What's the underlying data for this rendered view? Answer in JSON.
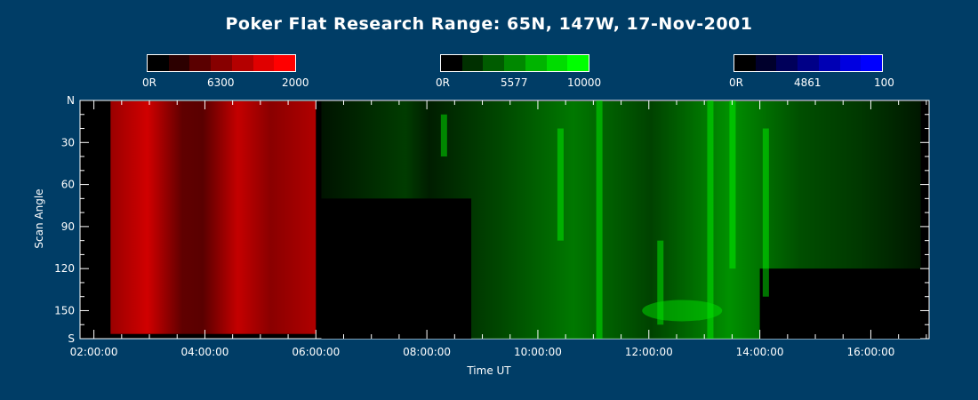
{
  "chart_data": {
    "type": "heatmap",
    "title": "Poker Flat Research Range: 65N, 147W, 17-Nov-2001",
    "xlabel": "Time UT",
    "ylabel": "Scan Angle",
    "x_ticks": [
      "02:00:00",
      "04:00:00",
      "06:00:00",
      "08:00:00",
      "10:00:00",
      "12:00:00",
      "14:00:00",
      "16:00:00"
    ],
    "x_tick_hours": [
      2,
      4,
      6,
      8,
      10,
      12,
      14,
      16
    ],
    "xlim_hours": [
      1.75,
      17.05
    ],
    "y_ticks": [
      "N",
      "30",
      "60",
      "90",
      "120",
      "150",
      "S"
    ],
    "y_tick_values": [
      0,
      30,
      60,
      90,
      120,
      150,
      170
    ],
    "ylim": [
      0,
      170
    ],
    "colorbars": [
      {
        "name": "6300",
        "min_label": "0R",
        "max_label": "2000",
        "colors": [
          "#000000",
          "#2c0000",
          "#5a0000",
          "#870000",
          "#b40000",
          "#e00000",
          "#ff0000"
        ]
      },
      {
        "name": "5577",
        "min_label": "0R",
        "max_label": "10000",
        "colors": [
          "#000000",
          "#003000",
          "#005c00",
          "#008800",
          "#00b400",
          "#00dc00",
          "#00ff00"
        ]
      },
      {
        "name": "4861",
        "min_label": "0R",
        "max_label": "100",
        "colors": [
          "#000000",
          "#00002c",
          "#00005a",
          "#000087",
          "#0000b4",
          "#0000e0",
          "#0000ff"
        ]
      }
    ],
    "emission_periods": [
      {
        "emission": "6300",
        "start_hour": 2.3,
        "end_hour": 6.0,
        "color": "#d00000"
      },
      {
        "emission": "5577",
        "start_hour": 6.1,
        "end_hour": 16.9,
        "color": "#00e000"
      }
    ]
  }
}
